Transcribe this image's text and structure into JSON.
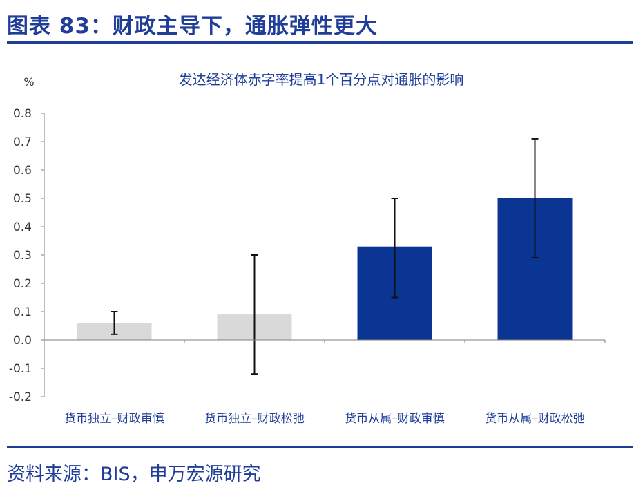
{
  "figure": {
    "title": "图表 83：财政主导下，通胀弹性更大",
    "source": "资料来源：BIS，申万宏源研究"
  },
  "colors": {
    "accent": "#1f3d99",
    "bar_gray": "#d9d9d9",
    "bar_blue": "#0b3592",
    "error_bar": "#111111"
  },
  "chart_data": {
    "type": "bar",
    "title": "发达经济体赤字率提高1个百分点对通胀的影响",
    "ylabel": "%",
    "xlabel": "",
    "categories": [
      "货币独立–财政审慎",
      "货币独立–财政松弛",
      "货币从属–财政审慎",
      "货币从属–财政松弛"
    ],
    "values": [
      0.06,
      0.09,
      0.33,
      0.5
    ],
    "error_low": [
      0.02,
      -0.12,
      0.15,
      0.29
    ],
    "error_high": [
      0.1,
      0.3,
      0.5,
      0.71
    ],
    "bar_colors": [
      "#d9d9d9",
      "#d9d9d9",
      "#0b3592",
      "#0b3592"
    ],
    "ylim": [
      -0.2,
      0.8
    ],
    "yticks": [
      "0.8",
      "0.7",
      "0.6",
      "0.5",
      "0.4",
      "0.3",
      "0.2",
      "0.1",
      "0.0",
      "-0.1",
      "-0.2"
    ],
    "grid": false,
    "legend": "none"
  }
}
